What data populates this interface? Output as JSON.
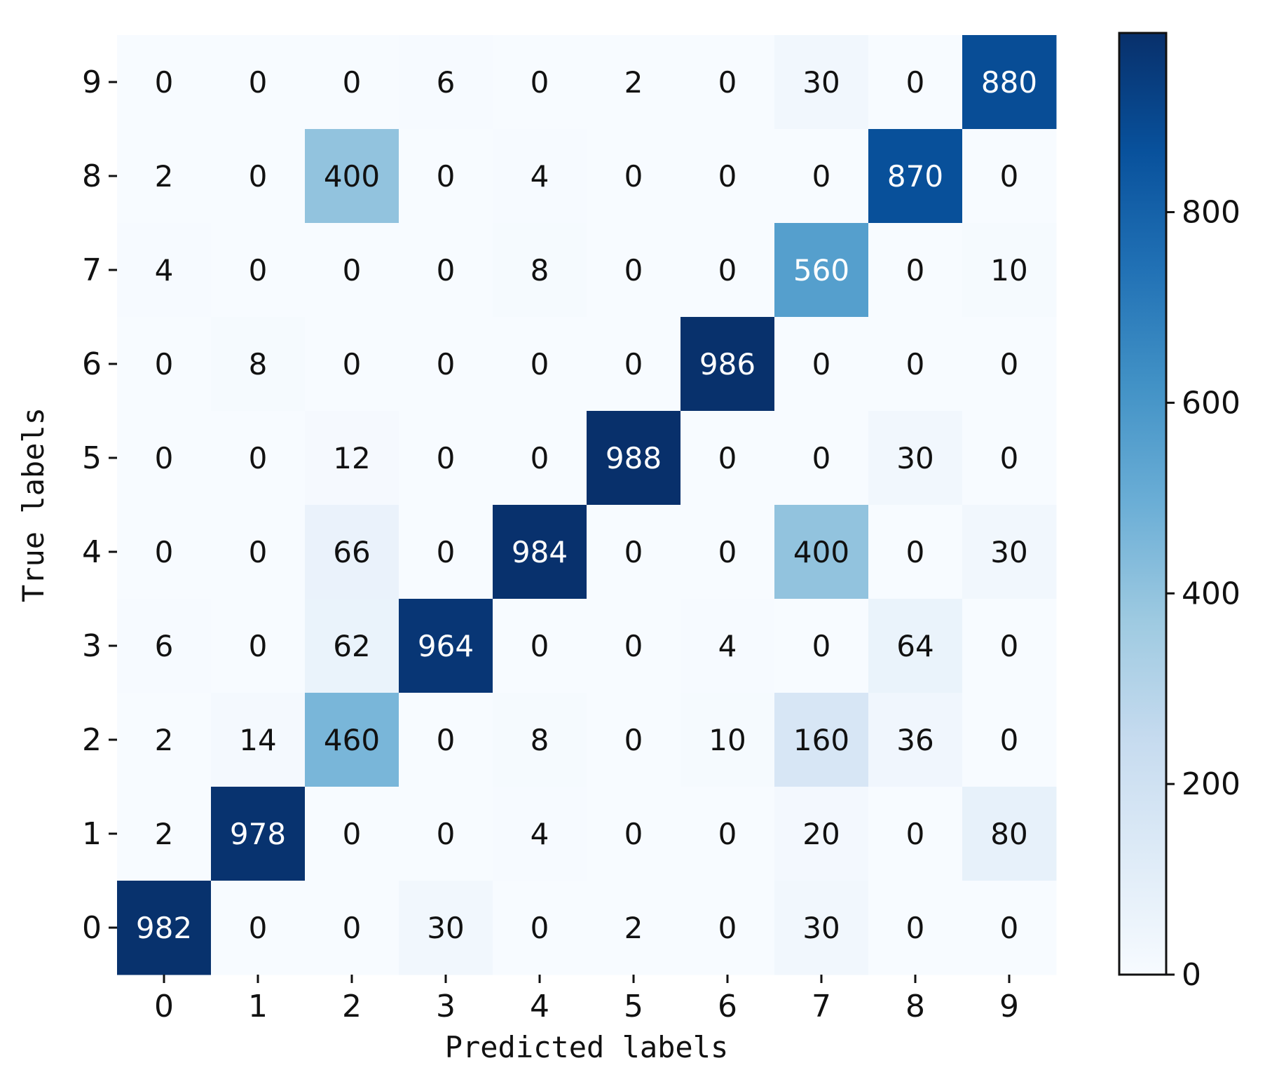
{
  "chart_data": {
    "type": "heatmap",
    "title": "",
    "xlabel": "Predicted labels",
    "ylabel": "True labels",
    "x_categories": [
      "0",
      "1",
      "2",
      "3",
      "4",
      "5",
      "6",
      "7",
      "8",
      "9"
    ],
    "y_categories": [
      "9",
      "8",
      "7",
      "6",
      "5",
      "4",
      "3",
      "2",
      "1",
      "0"
    ],
    "matrix": [
      [
        0,
        0,
        0,
        6,
        0,
        2,
        0,
        30,
        0,
        880
      ],
      [
        2,
        0,
        400,
        0,
        4,
        0,
        0,
        0,
        870,
        0
      ],
      [
        4,
        0,
        0,
        0,
        8,
        0,
        0,
        560,
        0,
        10
      ],
      [
        0,
        8,
        0,
        0,
        0,
        0,
        986,
        0,
        0,
        0
      ],
      [
        0,
        0,
        12,
        0,
        0,
        988,
        0,
        0,
        30,
        0
      ],
      [
        0,
        0,
        66,
        0,
        984,
        0,
        0,
        400,
        0,
        30
      ],
      [
        6,
        0,
        62,
        964,
        0,
        0,
        4,
        0,
        64,
        0
      ],
      [
        2,
        14,
        460,
        0,
        8,
        0,
        10,
        160,
        36,
        0
      ],
      [
        2,
        978,
        0,
        0,
        4,
        0,
        0,
        20,
        0,
        80
      ],
      [
        982,
        0,
        0,
        30,
        0,
        2,
        0,
        30,
        0,
        0
      ]
    ],
    "colormap": "Blues",
    "value_range": [
      0,
      988
    ],
    "colorbar_ticks": [
      "0",
      "200",
      "400",
      "600",
      "800"
    ],
    "colorbar_tick_values": [
      0,
      200,
      400,
      600,
      800
    ],
    "grid": false
  }
}
